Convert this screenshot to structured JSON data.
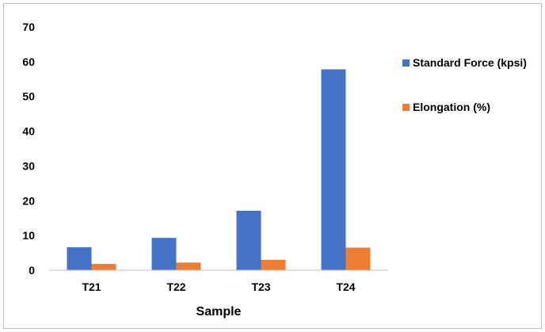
{
  "chart_data": {
    "type": "bar",
    "title": "",
    "xlabel": "Sample",
    "ylabel": "",
    "categories": [
      "T21",
      "T22",
      "T23",
      "T24"
    ],
    "series": [
      {
        "name": "Standard Force (kpsi)",
        "values": [
          6.6,
          9.3,
          17.1,
          57.8
        ],
        "color": "#4472C4"
      },
      {
        "name": "Elongation (%)",
        "values": [
          1.8,
          2.2,
          3.0,
          6.5
        ],
        "color": "#ED7D31"
      }
    ],
    "ylim": [
      0,
      70
    ],
    "yticks": [
      0,
      10,
      20,
      30,
      40,
      50,
      60,
      70
    ],
    "grid": false,
    "legend_position": "right"
  }
}
